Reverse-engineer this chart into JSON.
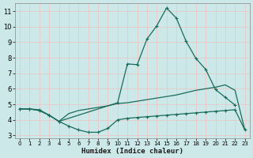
{
  "xlabel": "Humidex (Indice chaleur)",
  "xlim": [
    -0.5,
    23.5
  ],
  "ylim": [
    2.8,
    11.5
  ],
  "xticks": [
    0,
    1,
    2,
    3,
    4,
    5,
    6,
    7,
    8,
    9,
    10,
    11,
    12,
    13,
    14,
    15,
    16,
    17,
    18,
    19,
    20,
    21,
    22,
    23
  ],
  "yticks": [
    3,
    4,
    5,
    6,
    7,
    8,
    9,
    10,
    11
  ],
  "bg_color": "#cce8e8",
  "grid_color": "#e8c8c8",
  "line_color": "#1a6b5a",
  "line1_x": [
    0,
    1,
    2,
    3,
    4,
    5,
    6,
    7,
    8,
    9,
    10,
    11,
    12,
    13,
    14,
    15,
    16,
    17,
    18,
    19,
    20,
    21,
    22,
    23
  ],
  "line1_y": [
    4.7,
    4.7,
    4.6,
    4.3,
    3.9,
    3.6,
    3.35,
    3.2,
    3.2,
    3.45,
    4.0,
    4.1,
    4.15,
    4.2,
    4.25,
    4.3,
    4.35,
    4.4,
    4.45,
    4.5,
    4.55,
    4.6,
    4.65,
    3.35
  ],
  "line2_x": [
    0,
    1,
    2,
    3,
    4,
    5,
    6,
    7,
    8,
    9,
    10,
    11,
    12,
    13,
    14,
    15,
    16,
    17,
    18,
    19,
    20,
    21,
    22,
    23
  ],
  "line2_y": [
    4.7,
    4.7,
    4.6,
    4.3,
    3.9,
    4.4,
    4.6,
    4.7,
    4.8,
    4.9,
    5.05,
    5.1,
    5.2,
    5.3,
    5.4,
    5.5,
    5.6,
    5.75,
    5.9,
    6.0,
    6.1,
    6.25,
    5.9,
    3.35
  ],
  "line3_x": [
    0,
    1,
    2,
    3,
    4,
    10,
    11,
    12,
    13,
    14,
    15,
    16,
    17,
    18,
    19,
    20,
    21,
    22
  ],
  "line3_y": [
    4.7,
    4.7,
    4.65,
    4.3,
    3.9,
    5.1,
    7.6,
    7.55,
    9.2,
    10.05,
    11.2,
    10.55,
    9.05,
    7.95,
    7.25,
    5.95,
    5.45,
    4.95
  ],
  "xlabel_fontsize": 6.5,
  "tick_fontsize_x": 5,
  "tick_fontsize_y": 6
}
